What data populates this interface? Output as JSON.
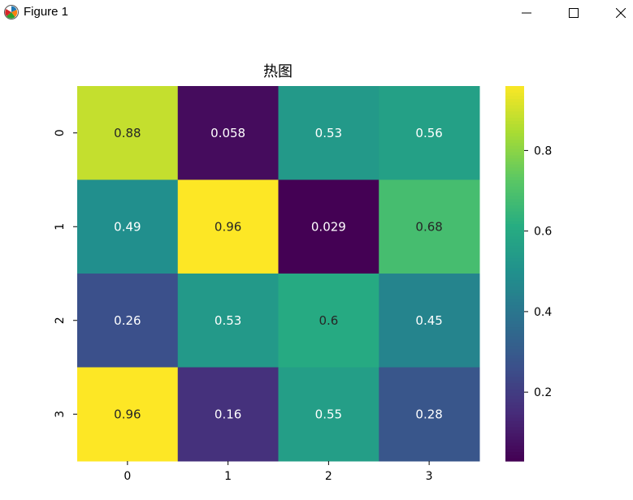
{
  "window": {
    "title": "Figure 1",
    "icon": "matplotlib-logo-icon",
    "controls": [
      "minimize-icon",
      "maximize-icon",
      "close-icon"
    ]
  },
  "chart_data": {
    "type": "heatmap",
    "title": "热图",
    "xlabel": "",
    "ylabel": "",
    "x_categories": [
      "0",
      "1",
      "2",
      "3"
    ],
    "y_categories": [
      "0",
      "1",
      "2",
      "3"
    ],
    "values": [
      [
        0.88,
        0.058,
        0.53,
        0.56
      ],
      [
        0.49,
        0.96,
        0.029,
        0.68
      ],
      [
        0.26,
        0.53,
        0.6,
        0.45
      ],
      [
        0.96,
        0.16,
        0.55,
        0.28
      ]
    ],
    "annotations": [
      [
        "0.88",
        "0.058",
        "0.53",
        "0.56"
      ],
      [
        "0.49",
        "0.96",
        "0.029",
        "0.68"
      ],
      [
        "0.26",
        "0.53",
        "0.6",
        "0.45"
      ],
      [
        "0.96",
        "0.16",
        "0.55",
        "0.28"
      ]
    ],
    "colormap": "viridis",
    "colorbar": {
      "range": [
        0.029,
        0.96
      ],
      "ticks": [
        0.2,
        0.4,
        0.6,
        0.8
      ],
      "tick_labels": [
        "0.2",
        "0.4",
        "0.6",
        "0.8"
      ]
    },
    "grid": false,
    "legend": "colorbar-right"
  }
}
